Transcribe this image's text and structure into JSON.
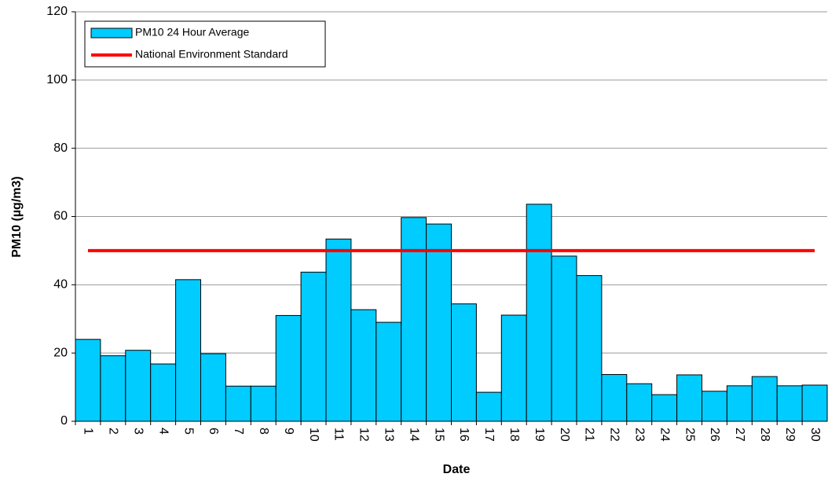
{
  "chart_data": {
    "type": "bar",
    "x_label": "Date",
    "y_label": "PM10 (µg/m3)",
    "categories": [
      "1",
      "2",
      "3",
      "4",
      "5",
      "6",
      "7",
      "8",
      "9",
      "10",
      "11",
      "12",
      "13",
      "14",
      "15",
      "16",
      "17",
      "18",
      "19",
      "20",
      "21",
      "22",
      "23",
      "24",
      "25",
      "26",
      "27",
      "28",
      "29",
      "30"
    ],
    "series": [
      {
        "name": "PM10 24 Hour Average",
        "type": "bar",
        "color": "#00ccff",
        "values": [
          24,
          19.2,
          20.8,
          16.8,
          41.5,
          19.8,
          10.3,
          10.3,
          31,
          43.7,
          53.4,
          32.7,
          29,
          59.7,
          57.8,
          34.4,
          8.5,
          31.1,
          63.6,
          48.4,
          42.7,
          13.7,
          11,
          7.8,
          13.6,
          8.8,
          10.4,
          13.1,
          10.4,
          10.6
        ]
      },
      {
        "name": "National Environment Standard",
        "type": "line",
        "color": "#ff0000",
        "values": [
          50,
          50,
          50,
          50,
          50,
          50,
          50,
          50,
          50,
          50,
          50,
          50,
          50,
          50,
          50,
          50,
          50,
          50,
          50,
          50,
          50,
          50,
          50,
          50,
          50,
          50,
          50,
          50,
          50,
          50
        ]
      }
    ],
    "ylim": [
      0,
      120
    ],
    "yticks": [
      0,
      20,
      40,
      60,
      80,
      100,
      120
    ],
    "grid": true
  }
}
